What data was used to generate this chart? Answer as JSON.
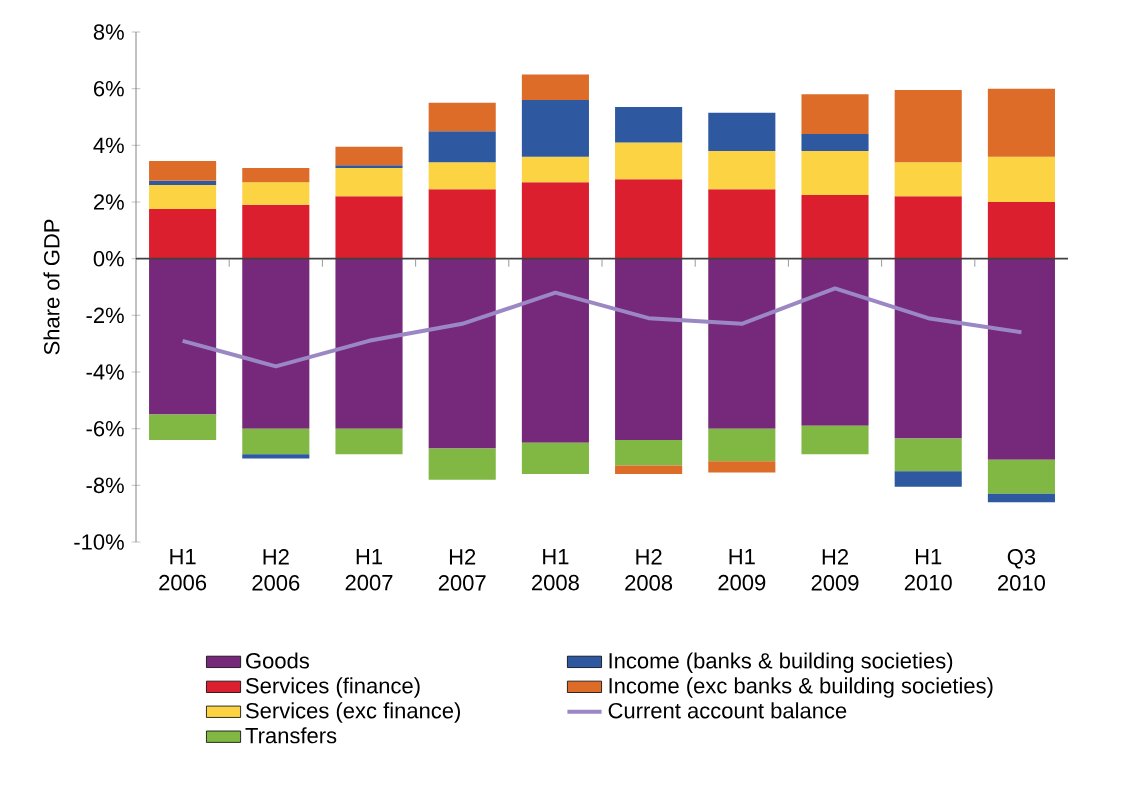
{
  "chart_data": {
    "type": "bar",
    "stacked": true,
    "ylabel": "Share of GDP",
    "categories": [
      "H1 2006",
      "H2 2006",
      "H1 2007",
      "H2 2007",
      "H1 2008",
      "H2 2008",
      "H1 2009",
      "H2 2009",
      "H1 2010",
      "Q3 2010"
    ],
    "series": [
      {
        "name": "Goods",
        "color": "#76287a",
        "values": [
          -5.5,
          -6.0,
          -6.0,
          -6.7,
          -6.5,
          -6.4,
          -6.0,
          -5.9,
          -6.35,
          -7.1
        ]
      },
      {
        "name": "Services (finance)",
        "color": "#dc1f2e",
        "values": [
          1.75,
          1.9,
          2.2,
          2.45,
          2.7,
          2.8,
          2.45,
          2.25,
          2.2,
          2.0
        ]
      },
      {
        "name": "Services (exc finance)",
        "color": "#fbd343",
        "values": [
          0.85,
          0.8,
          1.0,
          0.95,
          0.9,
          1.3,
          1.35,
          1.55,
          1.2,
          1.6
        ]
      },
      {
        "name": "Transfers",
        "color": "#80b843",
        "values": [
          -0.9,
          -0.9,
          -0.9,
          -1.1,
          -1.1,
          -0.9,
          -1.15,
          -1.0,
          -1.15,
          -1.2
        ]
      },
      {
        "name": "Income (banks & building societies)",
        "color": "#2e59a0",
        "values": [
          0.15,
          -0.15,
          0.1,
          1.1,
          2.0,
          1.25,
          1.35,
          0.6,
          -0.55,
          -0.3
        ]
      },
      {
        "name": "Income (exc banks & building societies)",
        "color": "#dc6c28",
        "values": [
          0.7,
          0.5,
          0.65,
          1.0,
          0.9,
          -0.3,
          -0.4,
          1.4,
          2.55,
          2.4
        ]
      },
      {
        "name": "Current account balance",
        "type": "line",
        "color": "#9b87c4",
        "values": [
          -2.9,
          -3.8,
          -2.9,
          -2.3,
          -1.2,
          -2.1,
          -2.3,
          -1.05,
          -2.1,
          -2.6
        ]
      }
    ],
    "ylim": [
      -10,
      8
    ],
    "yticks": [
      {
        "value": -10,
        "label": "-10%"
      },
      {
        "value": -8,
        "label": "-8%"
      },
      {
        "value": -6,
        "label": "-6%"
      },
      {
        "value": -4,
        "label": "-4%"
      },
      {
        "value": -2,
        "label": "-2%"
      },
      {
        "value": 0,
        "label": "0%"
      },
      {
        "value": 2,
        "label": "2%"
      },
      {
        "value": 4,
        "label": "4%"
      },
      {
        "value": 6,
        "label": "6%"
      },
      {
        "value": 8,
        "label": "8%"
      }
    ],
    "legend": "bottom"
  }
}
